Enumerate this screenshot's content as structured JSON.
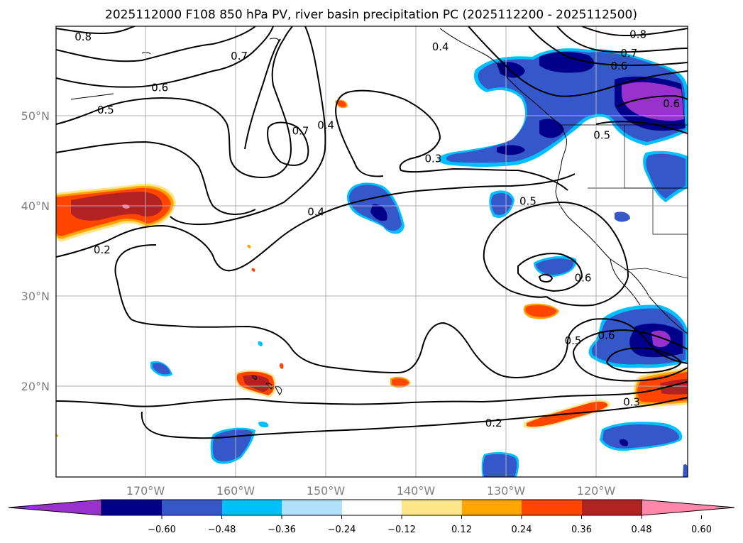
{
  "title": "2025112000 F108 850 hPa PV, river basin precipitation PC (2025112200 - 2025112500)",
  "map": {
    "lat_labels": [
      "50°N",
      "40°N",
      "30°N",
      "20°N"
    ],
    "lon_labels": [
      "170°W",
      "160°W",
      "150°W",
      "140°W",
      "130°W",
      "120°W"
    ],
    "contour_labels": [
      {
        "text": "0.8",
        "lon": -177.0,
        "lat": 58.8
      },
      {
        "text": "0.8",
        "lon": -115.5,
        "lat": 59.1
      },
      {
        "text": "0.7",
        "lon": -159.7,
        "lat": 56.7
      },
      {
        "text": "0.7",
        "lon": -116.5,
        "lat": 57.0
      },
      {
        "text": "0.6",
        "lon": -168.5,
        "lat": 53.2
      },
      {
        "text": "0.6",
        "lon": -117.6,
        "lat": 55.6
      },
      {
        "text": "0.4",
        "lon": -137.4,
        "lat": 57.7
      },
      {
        "text": "0.5",
        "lon": -174.5,
        "lat": 50.7
      },
      {
        "text": "0.7",
        "lon": -152.9,
        "lat": 48.4
      },
      {
        "text": "0.4",
        "lon": -150.1,
        "lat": 49.0
      },
      {
        "text": "0.3",
        "lon": -138.2,
        "lat": 45.3
      },
      {
        "text": "0.5",
        "lon": -119.5,
        "lat": 47.9
      },
      {
        "text": "0.6",
        "lon": -111.8,
        "lat": 51.4
      },
      {
        "text": "0.4",
        "lon": -151.2,
        "lat": 39.4
      },
      {
        "text": "0.5",
        "lon": -127.7,
        "lat": 40.6
      },
      {
        "text": "0.2",
        "lon": -174.9,
        "lat": 35.2
      },
      {
        "text": "0.6",
        "lon": -121.6,
        "lat": 32.1
      },
      {
        "text": "0.5",
        "lon": -122.7,
        "lat": 25.1
      },
      {
        "text": "0.6",
        "lon": -119.0,
        "lat": 25.7
      },
      {
        "text": "0.3",
        "lon": -116.2,
        "lat": 18.3
      },
      {
        "text": "0.2",
        "lon": -131.5,
        "lat": 16.0
      }
    ]
  },
  "colorbar": {
    "tick_labels": [
      "−0.60",
      "−0.48",
      "−0.36",
      "−0.24",
      "−0.12",
      "0.12",
      "0.24",
      "0.36",
      "0.48",
      "0.60"
    ],
    "colors": [
      "#9932cc",
      "#00008b",
      "#3557c9",
      "#00bfff",
      "#b0e0fa",
      "#ffffff",
      "#fde68a",
      "#ffa500",
      "#ff4500",
      "#b22222",
      "#ff88aa"
    ]
  }
}
